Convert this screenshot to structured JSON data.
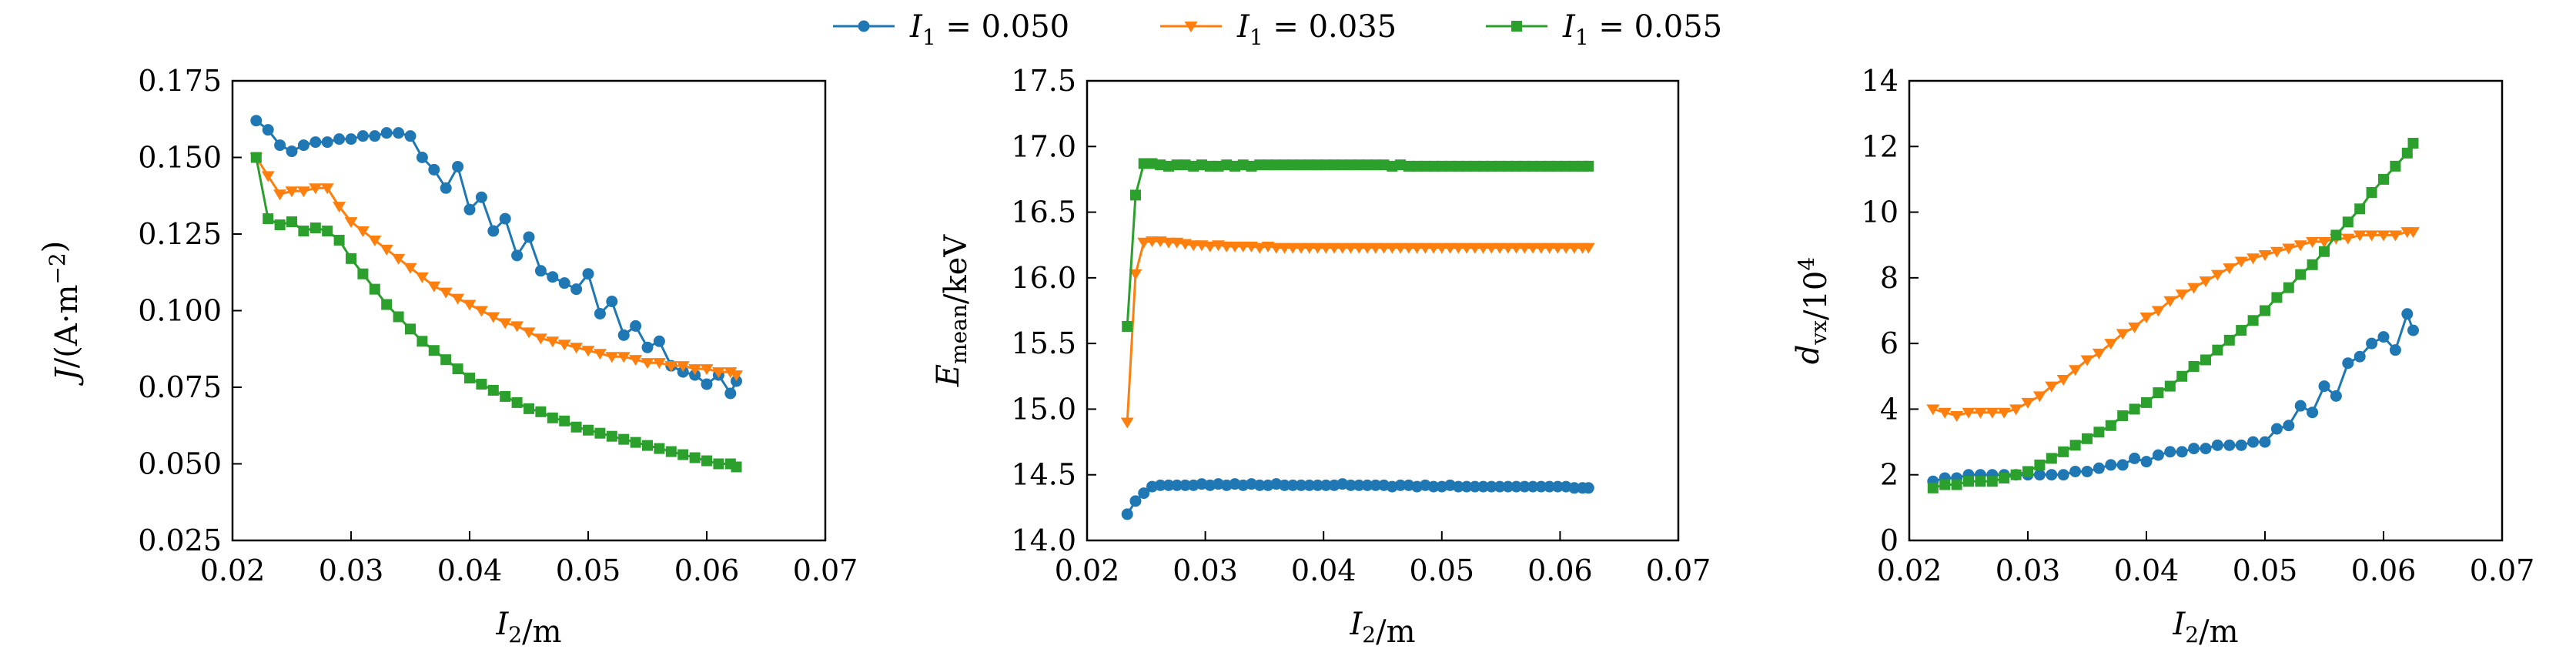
{
  "colors": {
    "blue": "#1f77b4",
    "orange": "#ff7f0e",
    "green": "#2ca02c"
  },
  "legend": {
    "placement": "top-center",
    "entries": [
      {
        "label": "I_1 = 0.050",
        "color": "#1f77b4",
        "marker": "circle"
      },
      {
        "label": "I_1 = 0.035",
        "color": "#ff7f0e",
        "marker": "triangle-down"
      },
      {
        "label": "I_1 = 0.055",
        "color": "#2ca02c",
        "marker": "square"
      }
    ]
  },
  "chart_data": [
    {
      "type": "line",
      "xlabel": "I_2/m",
      "ylabel": "J/(A·m^−2)",
      "xlim": [
        0.02,
        0.07
      ],
      "ylim": [
        0.025,
        0.175
      ],
      "xticks": [
        "0.02",
        "0.03",
        "0.04",
        "0.05",
        "0.06",
        "0.07"
      ],
      "yticks": [
        "0.025",
        "0.050",
        "0.075",
        "0.100",
        "0.125",
        "0.150",
        "0.175"
      ],
      "grid": false,
      "series": [
        {
          "name": "I_1 = 0.050",
          "color": "#1f77b4",
          "marker": "circle",
          "x": [
            0.022,
            0.023,
            0.024,
            0.025,
            0.026,
            0.027,
            0.028,
            0.029,
            0.03,
            0.031,
            0.032,
            0.033,
            0.034,
            0.035,
            0.036,
            0.037,
            0.038,
            0.039,
            0.04,
            0.041,
            0.042,
            0.043,
            0.044,
            0.045,
            0.046,
            0.047,
            0.048,
            0.049,
            0.05,
            0.051,
            0.052,
            0.053,
            0.054,
            0.055,
            0.056,
            0.057,
            0.058,
            0.059,
            0.06,
            0.061,
            0.062,
            0.0625
          ],
          "y": [
            0.162,
            0.159,
            0.154,
            0.152,
            0.154,
            0.155,
            0.155,
            0.156,
            0.156,
            0.157,
            0.157,
            0.158,
            0.158,
            0.157,
            0.15,
            0.146,
            0.14,
            0.147,
            0.133,
            0.137,
            0.126,
            0.13,
            0.118,
            0.124,
            0.113,
            0.111,
            0.109,
            0.107,
            0.112,
            0.099,
            0.103,
            0.092,
            0.095,
            0.088,
            0.09,
            0.082,
            0.08,
            0.079,
            0.076,
            0.079,
            0.073,
            0.077
          ]
        },
        {
          "name": "I_1 = 0.035",
          "color": "#ff7f0e",
          "marker": "triangle-down",
          "x": [
            0.022,
            0.023,
            0.024,
            0.025,
            0.026,
            0.027,
            0.028,
            0.029,
            0.03,
            0.031,
            0.032,
            0.033,
            0.034,
            0.035,
            0.036,
            0.037,
            0.038,
            0.039,
            0.04,
            0.041,
            0.042,
            0.043,
            0.044,
            0.045,
            0.046,
            0.047,
            0.048,
            0.049,
            0.05,
            0.051,
            0.052,
            0.053,
            0.054,
            0.055,
            0.056,
            0.057,
            0.058,
            0.059,
            0.06,
            0.061,
            0.062,
            0.0625
          ],
          "y": [
            0.15,
            0.144,
            0.138,
            0.139,
            0.139,
            0.14,
            0.14,
            0.134,
            0.129,
            0.126,
            0.123,
            0.12,
            0.117,
            0.114,
            0.111,
            0.108,
            0.106,
            0.104,
            0.102,
            0.1,
            0.098,
            0.096,
            0.095,
            0.093,
            0.091,
            0.09,
            0.089,
            0.088,
            0.087,
            0.086,
            0.085,
            0.085,
            0.084,
            0.083,
            0.083,
            0.082,
            0.082,
            0.081,
            0.081,
            0.08,
            0.08,
            0.079
          ]
        },
        {
          "name": "I_1 = 0.055",
          "color": "#2ca02c",
          "marker": "square",
          "x": [
            0.022,
            0.023,
            0.024,
            0.025,
            0.026,
            0.027,
            0.028,
            0.029,
            0.03,
            0.031,
            0.032,
            0.033,
            0.034,
            0.035,
            0.036,
            0.037,
            0.038,
            0.039,
            0.04,
            0.041,
            0.042,
            0.043,
            0.044,
            0.045,
            0.046,
            0.047,
            0.048,
            0.049,
            0.05,
            0.051,
            0.052,
            0.053,
            0.054,
            0.055,
            0.056,
            0.057,
            0.058,
            0.059,
            0.06,
            0.061,
            0.062,
            0.0625
          ],
          "y": [
            0.15,
            0.13,
            0.128,
            0.129,
            0.126,
            0.127,
            0.126,
            0.123,
            0.117,
            0.112,
            0.107,
            0.102,
            0.098,
            0.094,
            0.09,
            0.087,
            0.084,
            0.081,
            0.078,
            0.076,
            0.074,
            0.072,
            0.07,
            0.068,
            0.067,
            0.065,
            0.064,
            0.062,
            0.061,
            0.06,
            0.059,
            0.058,
            0.057,
            0.056,
            0.055,
            0.054,
            0.053,
            0.052,
            0.051,
            0.05,
            0.05,
            0.049
          ]
        }
      ]
    },
    {
      "type": "line",
      "xlabel": "I_2/m",
      "ylabel": "E_mean/keV",
      "xlim": [
        0.02,
        0.07
      ],
      "ylim": [
        14.0,
        17.5
      ],
      "xticks": [
        "0.02",
        "0.03",
        "0.04",
        "0.05",
        "0.06",
        "0.07"
      ],
      "yticks": [
        "14.0",
        "14.5",
        "15.0",
        "15.5",
        "16.0",
        "16.5",
        "17.0",
        "17.5"
      ],
      "grid": false,
      "series": [
        {
          "name": "I_1 = 0.050",
          "color": "#1f77b4",
          "marker": "circle",
          "x": [
            0.0234,
            0.0241,
            0.0248,
            0.0255,
            0.0262,
            0.0269,
            0.0276,
            0.0283,
            0.029,
            0.0297,
            0.0304,
            0.0311,
            0.0318,
            0.0325,
            0.0332,
            0.0339,
            0.0346,
            0.0353,
            0.036,
            0.0367,
            0.0374,
            0.0381,
            0.0388,
            0.0395,
            0.0402,
            0.0409,
            0.0416,
            0.0423,
            0.043,
            0.0437,
            0.0444,
            0.0451,
            0.0458,
            0.0465,
            0.0472,
            0.0479,
            0.0486,
            0.0493,
            0.05,
            0.0507,
            0.0514,
            0.0521,
            0.0528,
            0.0535,
            0.0542,
            0.0549,
            0.0556,
            0.0563,
            0.057,
            0.0577,
            0.0584,
            0.0591,
            0.0598,
            0.0605,
            0.0612,
            0.0619,
            0.0624
          ],
          "y": [
            14.2,
            14.3,
            14.36,
            14.41,
            14.42,
            14.42,
            14.42,
            14.42,
            14.42,
            14.43,
            14.42,
            14.43,
            14.42,
            14.43,
            14.42,
            14.43,
            14.42,
            14.42,
            14.43,
            14.42,
            14.42,
            14.42,
            14.42,
            14.42,
            14.42,
            14.42,
            14.43,
            14.42,
            14.42,
            14.42,
            14.42,
            14.42,
            14.41,
            14.42,
            14.42,
            14.41,
            14.42,
            14.41,
            14.41,
            14.42,
            14.41,
            14.41,
            14.41,
            14.41,
            14.41,
            14.41,
            14.41,
            14.41,
            14.41,
            14.41,
            14.41,
            14.41,
            14.41,
            14.41,
            14.4,
            14.4,
            14.4
          ]
        },
        {
          "name": "I_1 = 0.035",
          "color": "#ff7f0e",
          "marker": "triangle-down",
          "x": [
            0.0234,
            0.0241,
            0.0248,
            0.0255,
            0.0262,
            0.0269,
            0.0276,
            0.0283,
            0.029,
            0.0297,
            0.0304,
            0.0311,
            0.0318,
            0.0325,
            0.0332,
            0.0339,
            0.0346,
            0.0353,
            0.036,
            0.0367,
            0.0374,
            0.0381,
            0.0388,
            0.0395,
            0.0402,
            0.0409,
            0.0416,
            0.0423,
            0.043,
            0.0437,
            0.0444,
            0.0451,
            0.0458,
            0.0465,
            0.0472,
            0.0479,
            0.0486,
            0.0493,
            0.05,
            0.0507,
            0.0514,
            0.0521,
            0.0528,
            0.0535,
            0.0542,
            0.0549,
            0.0556,
            0.0563,
            0.057,
            0.0577,
            0.0584,
            0.0591,
            0.0598,
            0.0605,
            0.0612,
            0.0619,
            0.0624
          ],
          "y": [
            14.9,
            16.03,
            16.27,
            16.28,
            16.28,
            16.27,
            16.27,
            16.26,
            16.25,
            16.25,
            16.24,
            16.25,
            16.24,
            16.24,
            16.24,
            16.24,
            16.23,
            16.24,
            16.23,
            16.23,
            16.23,
            16.23,
            16.23,
            16.23,
            16.23,
            16.23,
            16.23,
            16.23,
            16.23,
            16.23,
            16.23,
            16.23,
            16.23,
            16.23,
            16.23,
            16.23,
            16.23,
            16.23,
            16.23,
            16.23,
            16.23,
            16.23,
            16.23,
            16.23,
            16.23,
            16.23,
            16.23,
            16.23,
            16.23,
            16.23,
            16.23,
            16.23,
            16.23,
            16.23,
            16.23,
            16.23,
            16.23
          ]
        },
        {
          "name": "I_1 = 0.055",
          "color": "#2ca02c",
          "marker": "square",
          "x": [
            0.0234,
            0.0241,
            0.0248,
            0.0255,
            0.0262,
            0.0269,
            0.0276,
            0.0283,
            0.029,
            0.0297,
            0.0304,
            0.0311,
            0.0318,
            0.0325,
            0.0332,
            0.0339,
            0.0346,
            0.0353,
            0.036,
            0.0367,
            0.0374,
            0.0381,
            0.0388,
            0.0395,
            0.0402,
            0.0409,
            0.0416,
            0.0423,
            0.043,
            0.0437,
            0.0444,
            0.0451,
            0.0458,
            0.0465,
            0.0472,
            0.0479,
            0.0486,
            0.0493,
            0.05,
            0.0507,
            0.0514,
            0.0521,
            0.0528,
            0.0535,
            0.0542,
            0.0549,
            0.0556,
            0.0563,
            0.057,
            0.0577,
            0.0584,
            0.0591,
            0.0598,
            0.0605,
            0.0612,
            0.0619,
            0.0624
          ],
          "y": [
            15.63,
            16.63,
            16.87,
            16.87,
            16.86,
            16.85,
            16.86,
            16.86,
            16.85,
            16.86,
            16.85,
            16.85,
            16.86,
            16.85,
            16.86,
            16.85,
            16.86,
            16.86,
            16.86,
            16.86,
            16.86,
            16.86,
            16.86,
            16.86,
            16.86,
            16.86,
            16.86,
            16.86,
            16.86,
            16.86,
            16.86,
            16.86,
            16.85,
            16.86,
            16.85,
            16.85,
            16.85,
            16.85,
            16.85,
            16.85,
            16.85,
            16.85,
            16.85,
            16.85,
            16.85,
            16.85,
            16.85,
            16.85,
            16.85,
            16.85,
            16.85,
            16.85,
            16.85,
            16.85,
            16.85,
            16.85,
            16.85
          ]
        }
      ]
    },
    {
      "type": "line",
      "xlabel": "I_2/m",
      "ylabel": "d_vx/10^4",
      "xlim": [
        0.02,
        0.07
      ],
      "ylim": [
        0,
        14
      ],
      "xticks": [
        "0.02",
        "0.03",
        "0.04",
        "0.05",
        "0.06",
        "0.07"
      ],
      "yticks": [
        "0",
        "2",
        "4",
        "6",
        "8",
        "10",
        "12",
        "14"
      ],
      "grid": false,
      "series": [
        {
          "name": "I_1 = 0.050",
          "color": "#1f77b4",
          "marker": "circle",
          "x": [
            0.022,
            0.023,
            0.024,
            0.025,
            0.026,
            0.027,
            0.028,
            0.029,
            0.03,
            0.031,
            0.032,
            0.033,
            0.034,
            0.035,
            0.036,
            0.037,
            0.038,
            0.039,
            0.04,
            0.041,
            0.042,
            0.043,
            0.044,
            0.045,
            0.046,
            0.047,
            0.048,
            0.049,
            0.05,
            0.051,
            0.052,
            0.053,
            0.054,
            0.055,
            0.056,
            0.057,
            0.058,
            0.059,
            0.06,
            0.061,
            0.062,
            0.0625
          ],
          "y": [
            1.8,
            1.9,
            1.9,
            2.0,
            2.0,
            2.0,
            2.0,
            2.0,
            2.0,
            2.0,
            2.0,
            2.0,
            2.1,
            2.1,
            2.2,
            2.3,
            2.3,
            2.5,
            2.4,
            2.6,
            2.7,
            2.7,
            2.8,
            2.8,
            2.9,
            2.9,
            2.9,
            3.0,
            3.0,
            3.4,
            3.5,
            4.1,
            3.9,
            4.7,
            4.4,
            5.4,
            5.6,
            6.0,
            6.2,
            5.8,
            6.9,
            6.4
          ]
        },
        {
          "name": "I_1 = 0.035",
          "color": "#ff7f0e",
          "marker": "triangle-down",
          "x": [
            0.022,
            0.023,
            0.024,
            0.025,
            0.026,
            0.027,
            0.028,
            0.029,
            0.03,
            0.031,
            0.032,
            0.033,
            0.034,
            0.035,
            0.036,
            0.037,
            0.038,
            0.039,
            0.04,
            0.041,
            0.042,
            0.043,
            0.044,
            0.045,
            0.046,
            0.047,
            0.048,
            0.049,
            0.05,
            0.051,
            0.052,
            0.053,
            0.054,
            0.055,
            0.056,
            0.057,
            0.058,
            0.059,
            0.06,
            0.061,
            0.062,
            0.0625
          ],
          "y": [
            4.0,
            3.9,
            3.8,
            3.9,
            3.9,
            3.9,
            3.9,
            4.0,
            4.2,
            4.4,
            4.7,
            4.9,
            5.2,
            5.5,
            5.7,
            6.0,
            6.3,
            6.5,
            6.8,
            7.0,
            7.3,
            7.5,
            7.7,
            7.9,
            8.1,
            8.3,
            8.5,
            8.6,
            8.7,
            8.8,
            8.9,
            9.0,
            9.1,
            9.1,
            9.2,
            9.2,
            9.3,
            9.3,
            9.3,
            9.3,
            9.4,
            9.4
          ]
        },
        {
          "name": "I_1 = 0.055",
          "color": "#2ca02c",
          "marker": "square",
          "x": [
            0.022,
            0.023,
            0.024,
            0.025,
            0.026,
            0.027,
            0.028,
            0.029,
            0.03,
            0.031,
            0.032,
            0.033,
            0.034,
            0.035,
            0.036,
            0.037,
            0.038,
            0.039,
            0.04,
            0.041,
            0.042,
            0.043,
            0.044,
            0.045,
            0.046,
            0.047,
            0.048,
            0.049,
            0.05,
            0.051,
            0.052,
            0.053,
            0.054,
            0.055,
            0.056,
            0.057,
            0.058,
            0.059,
            0.06,
            0.061,
            0.062,
            0.0625
          ],
          "y": [
            1.6,
            1.7,
            1.7,
            1.8,
            1.8,
            1.8,
            1.9,
            2.0,
            2.1,
            2.3,
            2.5,
            2.7,
            2.9,
            3.1,
            3.3,
            3.5,
            3.8,
            4.0,
            4.2,
            4.5,
            4.7,
            5.0,
            5.3,
            5.5,
            5.8,
            6.1,
            6.4,
            6.7,
            7.0,
            7.4,
            7.7,
            8.1,
            8.4,
            8.8,
            9.3,
            9.7,
            10.1,
            10.6,
            11.0,
            11.4,
            11.8,
            12.1
          ]
        }
      ]
    }
  ]
}
